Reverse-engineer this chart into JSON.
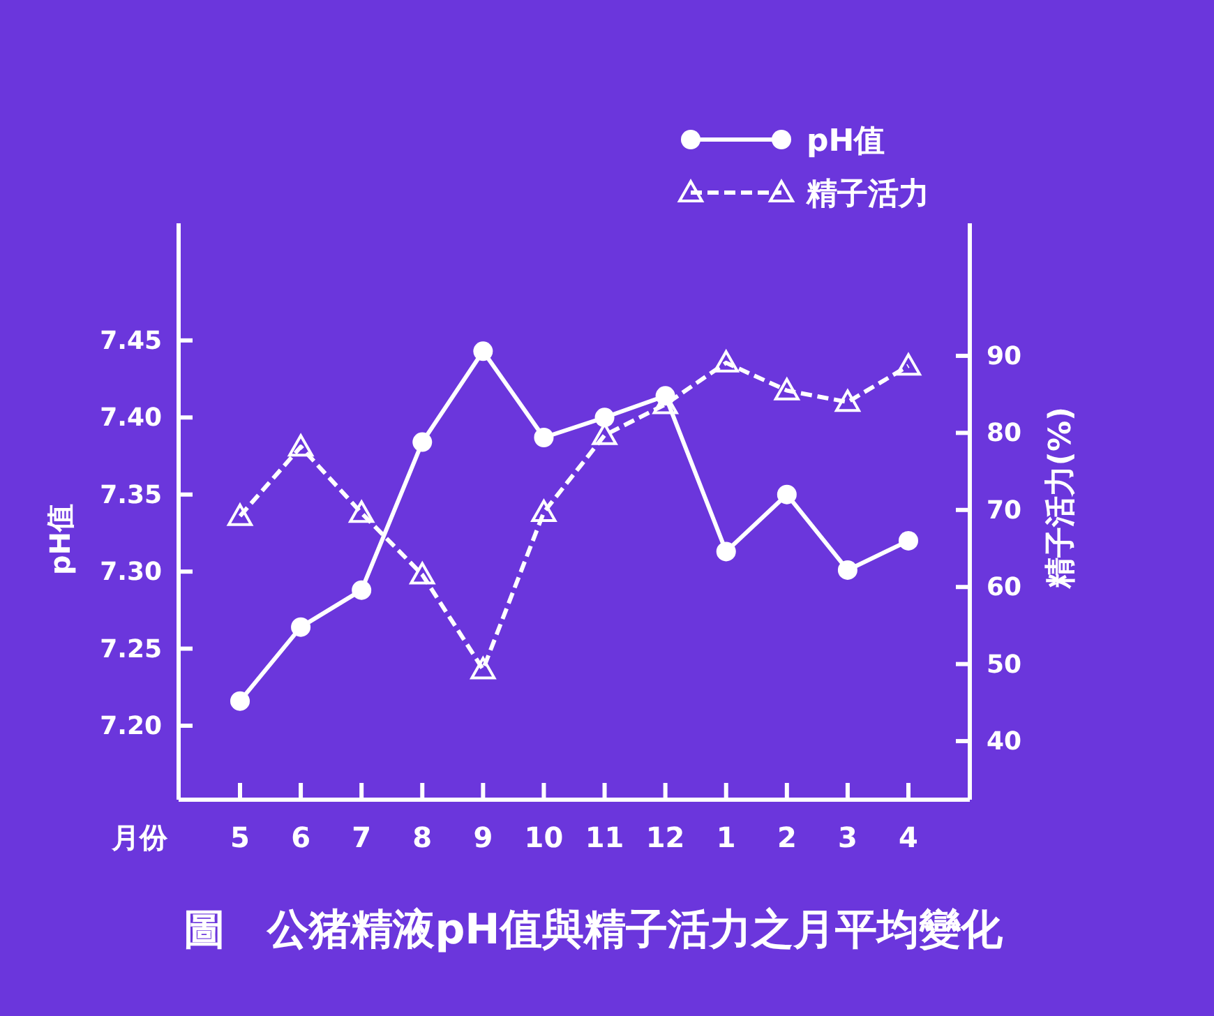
{
  "chart_data": {
    "type": "line",
    "title": "圖　公猪精液pH值與精子活力之月平均變化",
    "xlabel": "月份",
    "ylabel": "pH值",
    "y2label": "精子活力(%)",
    "categories": [
      "5",
      "6",
      "7",
      "8",
      "9",
      "10",
      "11",
      "12",
      "1",
      "2",
      "3",
      "4"
    ],
    "series": [
      {
        "name": "pH值",
        "color": "#ffffff",
        "marker": "circle",
        "line_style": "solid",
        "values": [
          7.216,
          7.264,
          7.288,
          7.384,
          7.443,
          7.387,
          7.4,
          7.414,
          7.313,
          7.35,
          7.301,
          7.32
        ]
      },
      {
        "name": "精子活力",
        "color": "#ffffff",
        "marker": "triangle",
        "line_style": "dashed",
        "axis": "y2",
        "values": [
          69.2,
          78.2,
          69.6,
          61.6,
          49.3,
          69.7,
          79.7,
          83.7,
          89.1,
          85.5,
          84.0,
          88.7
        ]
      }
    ],
    "ylim": [
      7.152,
      7.526
    ],
    "yticks": [
      {
        "value": 7.2,
        "label": "7.20"
      },
      {
        "value": 7.25,
        "label": "7.25"
      },
      {
        "value": 7.3,
        "label": "7.30"
      },
      {
        "value": 7.35,
        "label": "7.35"
      },
      {
        "value": 7.4,
        "label": "7.40"
      },
      {
        "value": 7.45,
        "label": "7.45"
      }
    ],
    "y2lim": [
      32.4,
      107.2
    ],
    "y2ticks": [
      40,
      50,
      60,
      70,
      80,
      90
    ],
    "legend": "top right"
  }
}
